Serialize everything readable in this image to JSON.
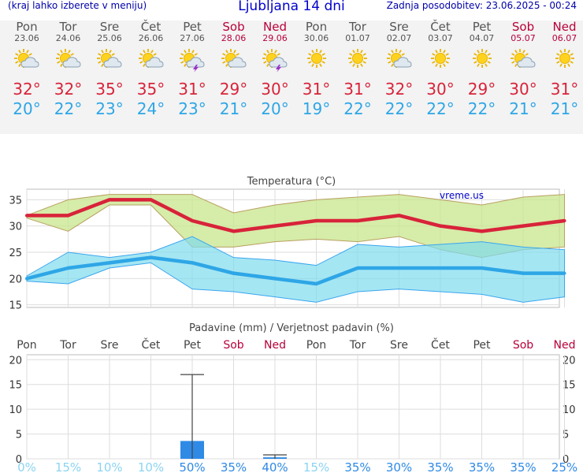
{
  "header": {
    "hint": "(kraj lahko izberete v meniju)",
    "title": "Ljubljana 14 dni",
    "updated": "Zadnja posodobitev: 23.06.2025 - 00:24"
  },
  "days": [
    {
      "name": "Pon",
      "date": "23.06",
      "weekend": false,
      "icon": "sun-partly-cloudy-icon",
      "tmax": "32°",
      "tmin": "20°"
    },
    {
      "name": "Tor",
      "date": "24.06",
      "weekend": false,
      "icon": "sun-partly-cloudy-icon",
      "tmax": "32°",
      "tmin": "22°"
    },
    {
      "name": "Sre",
      "date": "25.06",
      "weekend": false,
      "icon": "sun-partly-cloudy-icon",
      "tmax": "35°",
      "tmin": "23°"
    },
    {
      "name": "Čet",
      "date": "26.06",
      "weekend": false,
      "icon": "sun-partly-cloudy-icon",
      "tmax": "35°",
      "tmin": "24°"
    },
    {
      "name": "Pet",
      "date": "27.06",
      "weekend": false,
      "icon": "sun-cloud-thunder-icon",
      "tmax": "31°",
      "tmin": "23°"
    },
    {
      "name": "Sob",
      "date": "28.06",
      "weekend": true,
      "icon": "sun-partly-cloudy-icon",
      "tmax": "29°",
      "tmin": "21°"
    },
    {
      "name": "Ned",
      "date": "29.06",
      "weekend": true,
      "icon": "sun-cloud-thunder-icon",
      "tmax": "30°",
      "tmin": "20°"
    },
    {
      "name": "Pon",
      "date": "30.06",
      "weekend": false,
      "icon": "sun-icon",
      "tmax": "31°",
      "tmin": "19°"
    },
    {
      "name": "Tor",
      "date": "01.07",
      "weekend": false,
      "icon": "sun-icon",
      "tmax": "31°",
      "tmin": "22°"
    },
    {
      "name": "Sre",
      "date": "02.07",
      "weekend": false,
      "icon": "sun-partly-cloudy-icon",
      "tmax": "32°",
      "tmin": "22°"
    },
    {
      "name": "Čet",
      "date": "03.07",
      "weekend": false,
      "icon": "sun-icon",
      "tmax": "30°",
      "tmin": "22°"
    },
    {
      "name": "Pet",
      "date": "04.07",
      "weekend": false,
      "icon": "sun-icon",
      "tmax": "29°",
      "tmin": "22°"
    },
    {
      "name": "Sob",
      "date": "05.07",
      "weekend": true,
      "icon": "sun-partly-cloudy-icon",
      "tmax": "30°",
      "tmin": "21°"
    },
    {
      "name": "Ned",
      "date": "06.07",
      "weekend": true,
      "icon": "sun-icon",
      "tmax": "31°",
      "tmin": "21°"
    }
  ],
  "colors": {
    "max_line": "#d8233a",
    "min_line": "#2ea6e6",
    "max_band": "#c8e68c",
    "min_band": "#7fdcee",
    "precip_bar": "#2f8ae6",
    "weekend": "#b8003a",
    "prob_strong": "#2f8ae6",
    "prob_weak": "#8cd4f2"
  },
  "chart_data": [
    {
      "type": "line",
      "title": "Temperatura (°C)",
      "watermark": "vreme.us",
      "x": [
        "Pon 23.06",
        "Tor 24.06",
        "Sre 25.06",
        "Čet 26.06",
        "Pet 27.06",
        "Sob 28.06",
        "Ned 29.06",
        "Pon 30.06",
        "Tor 01.07",
        "Sre 02.07",
        "Čet 03.07",
        "Pet 04.07",
        "Sob 05.07",
        "Ned 06.07"
      ],
      "ylim": [
        14.5,
        37
      ],
      "yticks": [
        15,
        20,
        25,
        30,
        35
      ],
      "grid": true,
      "series": [
        {
          "name": "max",
          "values": [
            32,
            32,
            35,
            35,
            31,
            29,
            30,
            31,
            31,
            32,
            30,
            29,
            30,
            31
          ],
          "upper": [
            32,
            35,
            36,
            36,
            36,
            32.5,
            34,
            35,
            35.5,
            36,
            35,
            34,
            35.5,
            36
          ],
          "lower": [
            31.5,
            29,
            34,
            34,
            26,
            26,
            27,
            27.5,
            27,
            28,
            25.5,
            24,
            25.5,
            26
          ]
        },
        {
          "name": "min",
          "values": [
            20,
            22,
            23,
            24,
            23,
            21,
            20,
            19,
            22,
            22,
            22,
            22,
            21,
            21
          ],
          "upper": [
            20.5,
            25,
            24,
            25,
            28,
            24,
            23.5,
            22.5,
            26.5,
            26,
            26.5,
            27,
            26,
            25.5
          ],
          "lower": [
            19.5,
            19,
            22,
            23,
            18,
            17.5,
            16.5,
            15.5,
            17.5,
            18,
            17.5,
            17,
            15.5,
            16.5
          ]
        }
      ]
    },
    {
      "type": "bar",
      "title": "Padavine (mm) / Verjetnost padavin (%)",
      "categories": [
        "Pon",
        "Tor",
        "Sre",
        "Čet",
        "Pet",
        "Sob",
        "Ned",
        "Pon",
        "Tor",
        "Sre",
        "Čet",
        "Pet",
        "Sob",
        "Ned"
      ],
      "weekend": [
        false,
        false,
        false,
        false,
        false,
        true,
        true,
        false,
        false,
        false,
        false,
        false,
        true,
        true
      ],
      "ylim": [
        0,
        21
      ],
      "yticks": [
        0,
        5,
        10,
        15,
        20
      ],
      "values": [
        0,
        0,
        0,
        0,
        3.6,
        0,
        0.3,
        0,
        0,
        0,
        0,
        0,
        0,
        0
      ],
      "error_max": [
        0,
        0,
        0,
        0,
        17,
        0,
        0.8,
        0,
        0,
        0,
        0,
        0,
        0,
        0
      ],
      "probability": [
        "0%",
        "15%",
        "10%",
        "10%",
        "50%",
        "35%",
        "40%",
        "15%",
        "35%",
        "30%",
        "35%",
        "35%",
        "35%",
        "25%"
      ],
      "probability_strong": [
        false,
        false,
        false,
        false,
        true,
        true,
        true,
        false,
        true,
        true,
        true,
        true,
        true,
        true
      ]
    }
  ]
}
